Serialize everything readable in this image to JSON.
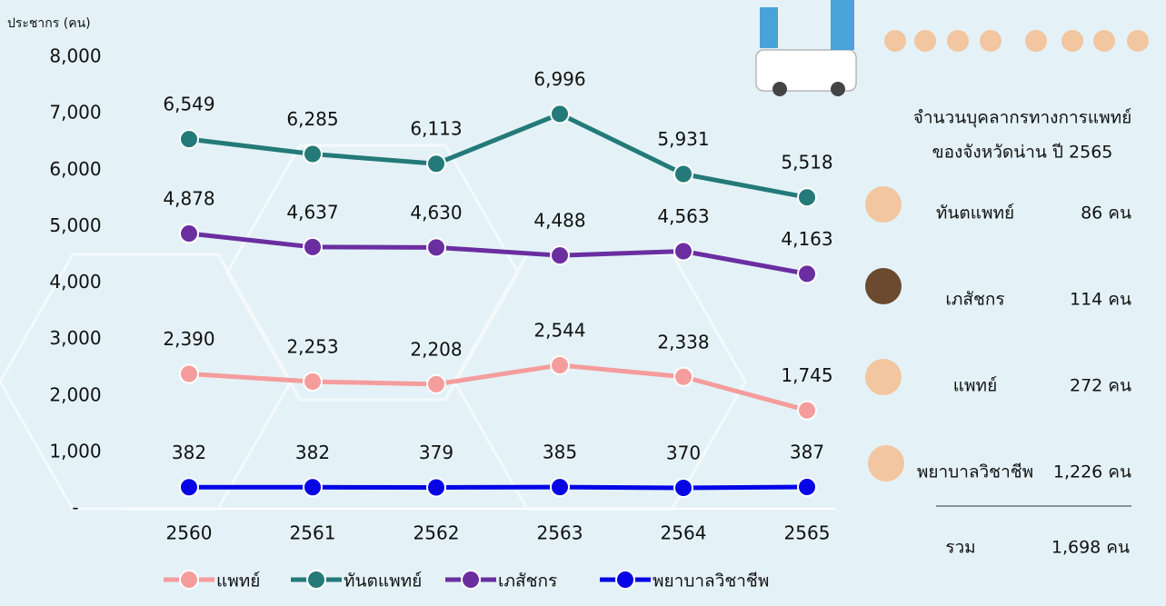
{
  "chart_data": {
    "type": "line",
    "y_axis_label": "ประชากร (คน)",
    "categories": [
      "2560",
      "2561",
      "2562",
      "2563",
      "2564",
      "2565"
    ],
    "ylim": [
      0,
      8000
    ],
    "yticks": [
      {
        "value": 0,
        "label": "-"
      },
      {
        "value": 1000,
        "label": "1,000"
      },
      {
        "value": 2000,
        "label": "2,000"
      },
      {
        "value": 3000,
        "label": "3,000"
      },
      {
        "value": 4000,
        "label": "4,000"
      },
      {
        "value": 5000,
        "label": "5,000"
      },
      {
        "value": 6000,
        "label": "6,000"
      },
      {
        "value": 7000,
        "label": "7,000"
      },
      {
        "value": 8000,
        "label": "8,000"
      }
    ],
    "series": [
      {
        "name": "แพทย์",
        "color": "#f59c9c",
        "values": [
          2390,
          2253,
          2208,
          2544,
          2338,
          1745
        ],
        "value_labels": [
          "2,390",
          "2,253",
          "2,208",
          "2,544",
          "2,338",
          "1,745"
        ]
      },
      {
        "name": "ทันตแพทย์",
        "color": "#237a78",
        "values": [
          6549,
          6285,
          6113,
          6996,
          5931,
          5518
        ],
        "value_labels": [
          "6,549",
          "6,285",
          "6,113",
          "6,996",
          "5,931",
          "5,518"
        ]
      },
      {
        "name": "เภสัชกร",
        "color": "#6a2ea0",
        "values": [
          4878,
          4637,
          4630,
          4488,
          4563,
          4163
        ],
        "value_labels": [
          "4,878",
          "4,637",
          "4,630",
          "4,488",
          "4,563",
          "4,163"
        ]
      },
      {
        "name": "พยาบาลวิชาชีพ",
        "color": "#0505e6",
        "values": [
          382,
          382,
          379,
          385,
          370,
          387
        ]
      }
    ]
  },
  "panel": {
    "title": [
      "จำนวนบุคลากรทางการแพทย์",
      "ของจังหวัดน่าน ปี 2565"
    ],
    "rows": [
      {
        "name": "ทันตแพทย์",
        "count": "86 คน"
      },
      {
        "name": "เภสัชกร",
        "count": "114 คน"
      },
      {
        "name": "แพทย์",
        "count": "272 คน"
      },
      {
        "name": "พยาบาลวิชาชีพ",
        "count": "1,226 คน"
      }
    ],
    "total": {
      "name": "รวม",
      "count": "1,698 คน"
    }
  }
}
